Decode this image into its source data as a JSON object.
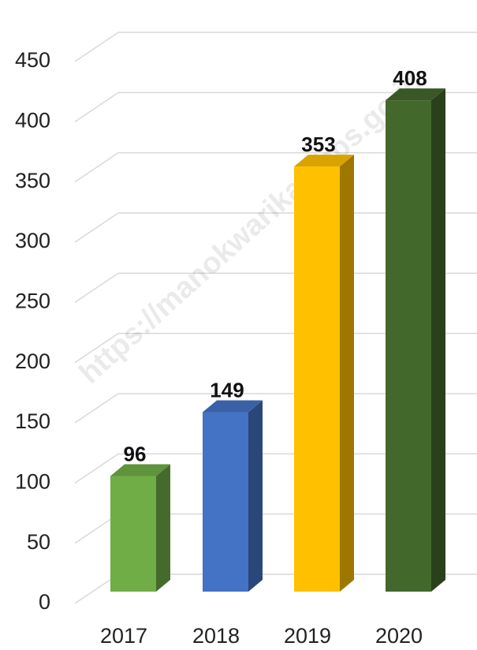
{
  "chart_data": {
    "type": "bar",
    "categories": [
      "2017",
      "2018",
      "2019",
      "2020"
    ],
    "values": [
      96,
      149,
      353,
      408
    ],
    "colors": [
      "#70ad47",
      "#4472c4",
      "#ffc000",
      "#43682b"
    ],
    "ylim": [
      0,
      450
    ],
    "yticks": [
      0,
      50,
      100,
      150,
      200,
      250,
      300,
      350,
      400,
      450
    ],
    "grid": true,
    "watermark": "https://manokwarikab.bps.go.id"
  }
}
